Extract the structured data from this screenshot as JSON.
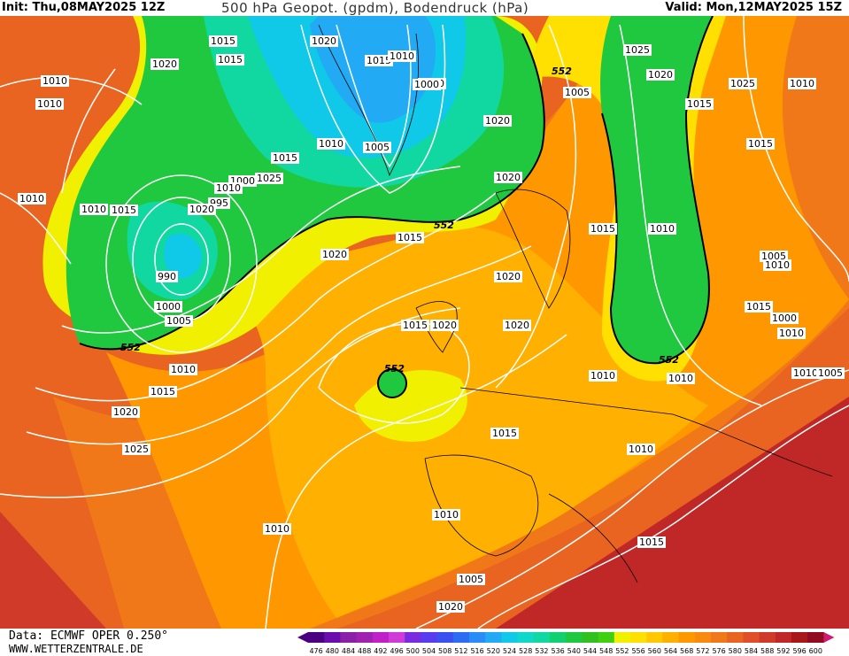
{
  "header": {
    "init": "Init: Thu,08MAY2025 12Z",
    "title": "500 hPa Geopot. (gpdm), Bodendruck (hPa)",
    "valid": "Valid: Mon,12MAY2025 15Z"
  },
  "footer": {
    "source": "Data: ECMWF OPER 0.250°",
    "site": "WWW.WETTERZENTRALE.DE"
  },
  "legend": {
    "levels": [
      "476",
      "480",
      "484",
      "488",
      "492",
      "496",
      "500",
      "504",
      "508",
      "512",
      "516",
      "520",
      "524",
      "528",
      "532",
      "536",
      "540",
      "544",
      "548",
      "552",
      "556",
      "560",
      "564",
      "568",
      "572",
      "576",
      "580",
      "584",
      "588",
      "592",
      "596",
      "600"
    ],
    "colors": [
      "#4b0082",
      "#6a0dad",
      "#8b1fa8",
      "#a020b0",
      "#c020c8",
      "#d03ad8",
      "#7a2be0",
      "#5a3cf0",
      "#3c50f0",
      "#2f6cf4",
      "#2a8cf6",
      "#22aaf4",
      "#10c8e8",
      "#10d8c8",
      "#10d8a0",
      "#10d070",
      "#20c840",
      "#30c020",
      "#40d010",
      "#f0f000",
      "#ffe000",
      "#ffc800",
      "#ffb000",
      "#ff9800",
      "#f88a10",
      "#f07818",
      "#e86420",
      "#e05028",
      "#d03a28",
      "#c02828",
      "#a81818",
      "#900a20"
    ]
  },
  "map": {
    "colors": {
      "lowest": "#2a8cf6",
      "blue": "#10c8e8",
      "teal": "#10d8a0",
      "green": "#20c840",
      "yellow": "#f0f000",
      "lightorange": "#ffc800",
      "orange": "#ff9800",
      "darkorange": "#f07818",
      "red": "#e05028",
      "darkred": "#c02828"
    },
    "contour_552": "552",
    "pressure_labels": [
      "1015",
      "1020",
      "1020",
      "1015",
      "1010",
      "1000",
      "1025",
      "1005",
      "1010",
      "1000",
      "1010",
      "1015",
      "1020",
      "1025",
      "1010",
      "1015",
      "1020",
      "1015",
      "1010",
      "1005",
      "1010",
      "995",
      "1000",
      "1005",
      "1010",
      "1015",
      "1020",
      "1010",
      "1025",
      "1015",
      "990",
      "1000",
      "1005",
      "1010",
      "1015",
      "1020",
      "1025",
      "1020",
      "1015",
      "1020",
      "1020",
      "1015",
      "1010",
      "1005",
      "1010",
      "1015",
      "1010",
      "1010",
      "1005",
      "1000",
      "1010",
      "1010",
      "1015",
      "1010",
      "1010",
      "1020",
      "1015",
      "1020",
      "1010",
      "1015",
      "1005",
      "1020"
    ]
  }
}
